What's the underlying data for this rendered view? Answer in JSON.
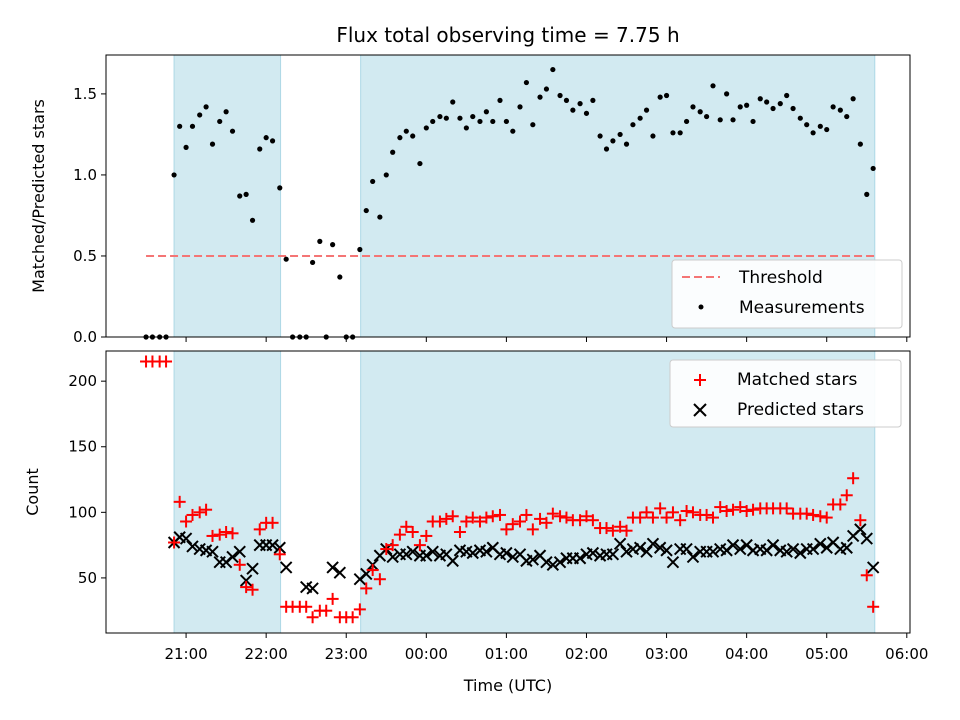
{
  "chart_data": [
    {
      "type": "scatter",
      "title": "Flux total observing time = 7.75 h",
      "xlabel": "",
      "ylabel": "Matched/Predicted stars",
      "ylim": [
        0,
        1.74
      ],
      "y_ticks": [
        0.0,
        0.5,
        1.0,
        1.5
      ],
      "y_tick_labels": [
        "0.0",
        "0.5",
        "1.0",
        "1.5"
      ],
      "shaded_intervals_hours": [
        [
          20.85,
          22.18
        ],
        [
          23.18,
          29.6
        ]
      ],
      "threshold": {
        "name": "Threshold",
        "value": 0.5,
        "x_start": 20.5,
        "x_end": 29.6,
        "color": "#f47575"
      },
      "legend_position": "lower right",
      "series": [
        {
          "name": "Measurements",
          "color": "#000000",
          "x": [
            20.5,
            20.58,
            20.67,
            20.75,
            20.85,
            20.92,
            21.0,
            21.08,
            21.17,
            21.25,
            21.33,
            21.42,
            21.5,
            21.58,
            21.67,
            21.75,
            21.83,
            21.92,
            22.0,
            22.08,
            22.17,
            22.25,
            22.33,
            22.42,
            22.5,
            22.58,
            22.67,
            22.75,
            22.83,
            22.92,
            23.0,
            23.08,
            23.17,
            23.25,
            23.33,
            23.42,
            23.5,
            23.58,
            23.67,
            23.75,
            23.83,
            23.92,
            24.0,
            24.08,
            24.17,
            24.25,
            24.33,
            24.42,
            24.5,
            24.58,
            24.67,
            24.75,
            24.83,
            24.92,
            25.0,
            25.08,
            25.17,
            25.25,
            25.33,
            25.42,
            25.5,
            25.58,
            25.67,
            25.75,
            25.83,
            25.92,
            26.0,
            26.08,
            26.17,
            26.25,
            26.33,
            26.42,
            26.5,
            26.58,
            26.67,
            26.75,
            26.83,
            26.92,
            27.0,
            27.08,
            27.17,
            27.25,
            27.33,
            27.42,
            27.5,
            27.58,
            27.67,
            27.75,
            27.83,
            27.92,
            28.0,
            28.08,
            28.17,
            28.25,
            28.33,
            28.42,
            28.5,
            28.58,
            28.67,
            28.75,
            28.83,
            28.92,
            29.0,
            29.08,
            29.17,
            29.25,
            29.33,
            29.42,
            29.5,
            29.58
          ],
          "y": [
            0.0,
            0.0,
            0.0,
            0.0,
            1.0,
            1.3,
            1.17,
            1.3,
            1.37,
            1.42,
            1.19,
            1.33,
            1.39,
            1.27,
            0.87,
            0.88,
            0.72,
            1.16,
            1.23,
            1.21,
            0.92,
            0.48,
            0.0,
            0.0,
            0.0,
            0.46,
            0.59,
            0.0,
            0.57,
            0.37,
            0.0,
            0.0,
            0.54,
            0.78,
            0.96,
            0.74,
            1.0,
            1.14,
            1.23,
            1.27,
            1.24,
            1.07,
            1.29,
            1.33,
            1.36,
            1.35,
            1.45,
            1.35,
            1.29,
            1.36,
            1.33,
            1.39,
            1.33,
            1.46,
            1.33,
            1.27,
            1.42,
            1.57,
            1.31,
            1.48,
            1.53,
            1.65,
            1.49,
            1.46,
            1.4,
            1.44,
            1.38,
            1.46,
            1.24,
            1.16,
            1.21,
            1.25,
            1.19,
            1.31,
            1.35,
            1.4,
            1.24,
            1.48,
            1.49,
            1.26,
            1.26,
            1.33,
            1.42,
            1.39,
            1.36,
            1.55,
            1.34,
            1.5,
            1.34,
            1.42,
            1.43,
            1.33,
            1.47,
            1.45,
            1.41,
            1.44,
            1.49,
            1.41,
            1.35,
            1.31,
            1.26,
            1.3,
            1.28,
            1.42,
            1.4,
            1.36,
            1.47,
            1.19,
            0.88,
            1.04
          ]
        }
      ]
    },
    {
      "type": "scatter",
      "title": "",
      "xlabel": "Time (UTC)",
      "ylabel": "Count",
      "ylim": [
        8,
        223
      ],
      "y_ticks": [
        50,
        100,
        150,
        200
      ],
      "y_tick_labels": [
        "50",
        "100",
        "150",
        "200"
      ],
      "x_ticks_hours": [
        21,
        22,
        23,
        24,
        25,
        26,
        27,
        28,
        29,
        30
      ],
      "x_tick_labels": [
        "21:00",
        "22:00",
        "23:00",
        "00:00",
        "01:00",
        "02:00",
        "03:00",
        "04:00",
        "05:00",
        "06:00"
      ],
      "shaded_intervals_hours": [
        [
          20.85,
          22.18
        ],
        [
          23.18,
          29.6
        ]
      ],
      "legend_position": "upper right",
      "series": [
        {
          "name": "Matched stars",
          "marker": "plus",
          "color": "#ff0000",
          "x": [
            20.5,
            20.58,
            20.67,
            20.75,
            20.85,
            20.92,
            21.0,
            21.08,
            21.17,
            21.25,
            21.33,
            21.42,
            21.5,
            21.58,
            21.67,
            21.75,
            21.83,
            21.92,
            22.0,
            22.08,
            22.17,
            22.25,
            22.33,
            22.42,
            22.5,
            22.58,
            22.67,
            22.75,
            22.83,
            22.92,
            23.0,
            23.08,
            23.17,
            23.25,
            23.33,
            23.42,
            23.5,
            23.58,
            23.67,
            23.75,
            23.83,
            23.92,
            24.0,
            24.08,
            24.17,
            24.25,
            24.33,
            24.42,
            24.5,
            24.58,
            24.67,
            24.75,
            24.83,
            24.92,
            25.0,
            25.08,
            25.17,
            25.25,
            25.33,
            25.42,
            25.5,
            25.58,
            25.67,
            25.75,
            25.83,
            25.92,
            26.0,
            26.08,
            26.17,
            26.25,
            26.33,
            26.42,
            26.5,
            26.58,
            26.67,
            26.75,
            26.83,
            26.92,
            27.0,
            27.08,
            27.17,
            27.25,
            27.33,
            27.42,
            27.5,
            27.58,
            27.67,
            27.75,
            27.83,
            27.92,
            28.0,
            28.08,
            28.17,
            28.25,
            28.33,
            28.42,
            28.5,
            28.58,
            28.67,
            28.75,
            28.83,
            28.92,
            29.0,
            29.08,
            29.17,
            29.25,
            29.33,
            29.42,
            29.5,
            29.58
          ],
          "y": [
            215,
            215,
            215,
            215,
            77,
            108,
            93,
            98,
            100,
            102,
            82,
            83,
            85,
            84,
            60,
            43,
            41,
            87,
            92,
            92,
            68,
            28,
            28,
            28,
            28,
            20,
            25,
            25,
            34,
            20,
            20,
            20,
            26,
            42,
            56,
            49,
            72,
            75,
            83,
            89,
            85,
            75,
            82,
            93,
            93,
            95,
            97,
            85,
            93,
            96,
            93,
            96,
            97,
            98,
            87,
            91,
            93,
            98,
            87,
            95,
            92,
            99,
            97,
            96,
            94,
            94,
            97,
            94,
            88,
            88,
            86,
            89,
            86,
            96,
            96,
            100,
            96,
            103,
            96,
            100,
            94,
            101,
            100,
            98,
            98,
            96,
            104,
            101,
            102,
            104,
            101,
            102,
            103,
            103,
            103,
            103,
            103,
            99,
            99,
            99,
            98,
            97,
            96,
            106,
            106,
            113,
            126,
            94,
            52,
            28
          ]
        },
        {
          "name": "Predicted stars",
          "marker": "x",
          "color": "#000000",
          "x": [
            20.85,
            20.92,
            21.0,
            21.08,
            21.17,
            21.25,
            21.33,
            21.42,
            21.5,
            21.58,
            21.67,
            21.75,
            21.83,
            21.92,
            22.0,
            22.08,
            22.17,
            22.25,
            22.5,
            22.58,
            22.83,
            22.92,
            23.17,
            23.25,
            23.33,
            23.42,
            23.5,
            23.58,
            23.67,
            23.75,
            23.83,
            23.92,
            24.0,
            24.08,
            24.17,
            24.25,
            24.33,
            24.42,
            24.5,
            24.58,
            24.67,
            24.75,
            24.83,
            24.92,
            25.0,
            25.08,
            25.17,
            25.25,
            25.33,
            25.42,
            25.5,
            25.58,
            25.67,
            25.75,
            25.83,
            25.92,
            26.0,
            26.08,
            26.17,
            26.25,
            26.33,
            26.42,
            26.5,
            26.58,
            26.67,
            26.75,
            26.83,
            26.92,
            27.0,
            27.08,
            27.17,
            27.25,
            27.33,
            27.42,
            27.5,
            27.58,
            27.67,
            27.75,
            27.83,
            27.92,
            28.0,
            28.08,
            28.17,
            28.25,
            28.33,
            28.42,
            28.5,
            28.58,
            28.67,
            28.75,
            28.83,
            28.92,
            29.0,
            29.08,
            29.17,
            29.25,
            29.33,
            29.42,
            29.5,
            29.58
          ],
          "y": [
            77,
            81,
            80,
            74,
            72,
            71,
            70,
            62,
            62,
            66,
            70,
            48,
            57,
            75,
            75,
            75,
            73,
            58,
            43,
            42,
            58,
            54,
            49,
            53,
            60,
            67,
            72,
            66,
            68,
            68,
            70,
            67,
            67,
            70,
            67,
            68,
            63,
            71,
            70,
            69,
            71,
            70,
            73,
            68,
            69,
            66,
            68,
            63,
            64,
            67,
            62,
            60,
            62,
            65,
            65,
            65,
            68,
            69,
            67,
            68,
            68,
            76,
            70,
            72,
            73,
            70,
            76,
            73,
            71,
            62,
            72,
            72,
            66,
            70,
            70,
            70,
            72,
            71,
            75,
            72,
            75,
            71,
            72,
            71,
            75,
            71,
            70,
            72,
            69,
            72,
            72,
            76,
            73,
            77,
            72,
            73,
            82,
            87,
            80,
            58
          ]
        }
      ]
    }
  ],
  "colors": {
    "span_fill": "#add8e6",
    "matched": "#ff0000",
    "predicted": "#000000",
    "threshold": "#f47575"
  }
}
